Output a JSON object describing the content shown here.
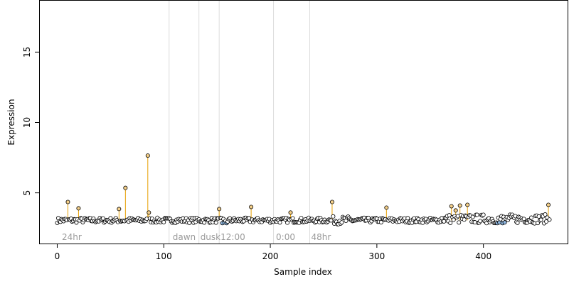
{
  "chart_data": {
    "type": "scatter",
    "title": "",
    "xlabel": "Sample index",
    "ylabel": "Expression",
    "xlim": [
      -17,
      479
    ],
    "ylim": [
      1.4,
      18.7
    ],
    "x_ticks": [
      0,
      100,
      200,
      300,
      400
    ],
    "y_ticks": [
      5,
      10,
      15
    ],
    "baseline": 3.05,
    "grid": false,
    "vertical_dividers": [
      105,
      133,
      152,
      203,
      237
    ],
    "region_labels": [
      {
        "x": 3,
        "text": "24hr"
      },
      {
        "x": 107,
        "text": "dawn"
      },
      {
        "x": 133,
        "text": "dusk"
      },
      {
        "x": 152,
        "text": "12:00"
      },
      {
        "x": 204,
        "text": "0:00"
      },
      {
        "x": 237,
        "text": "48hr"
      }
    ],
    "stem_color": "#e69f00",
    "high_point_color": "#f5d08a",
    "low_point_color": "#8fb7e0",
    "base_point_color": "#ffffff",
    "highlights": [
      {
        "x": 10,
        "y": 4.35
      },
      {
        "x": 20,
        "y": 3.9
      },
      {
        "x": 58,
        "y": 3.85
      },
      {
        "x": 64,
        "y": 5.35
      },
      {
        "x": 85,
        "y": 7.65
      },
      {
        "x": 86,
        "y": 3.6
      },
      {
        "x": 152,
        "y": 3.85
      },
      {
        "x": 182,
        "y": 4.0
      },
      {
        "x": 219,
        "y": 3.6
      },
      {
        "x": 258,
        "y": 4.35
      },
      {
        "x": 309,
        "y": 3.95
      },
      {
        "x": 370,
        "y": 4.05
      },
      {
        "x": 374,
        "y": 3.75
      },
      {
        "x": 378,
        "y": 4.1
      },
      {
        "x": 385,
        "y": 4.15
      },
      {
        "x": 461,
        "y": 4.15
      }
    ],
    "low_points": [
      {
        "x": 155,
        "y": 2.85
      },
      {
        "x": 157,
        "y": 2.9
      },
      {
        "x": 159,
        "y": 2.85
      },
      {
        "x": 413,
        "y": 2.85
      },
      {
        "x": 415,
        "y": 2.9
      },
      {
        "x": 418,
        "y": 2.85
      },
      {
        "x": 420,
        "y": 2.9
      }
    ]
  }
}
